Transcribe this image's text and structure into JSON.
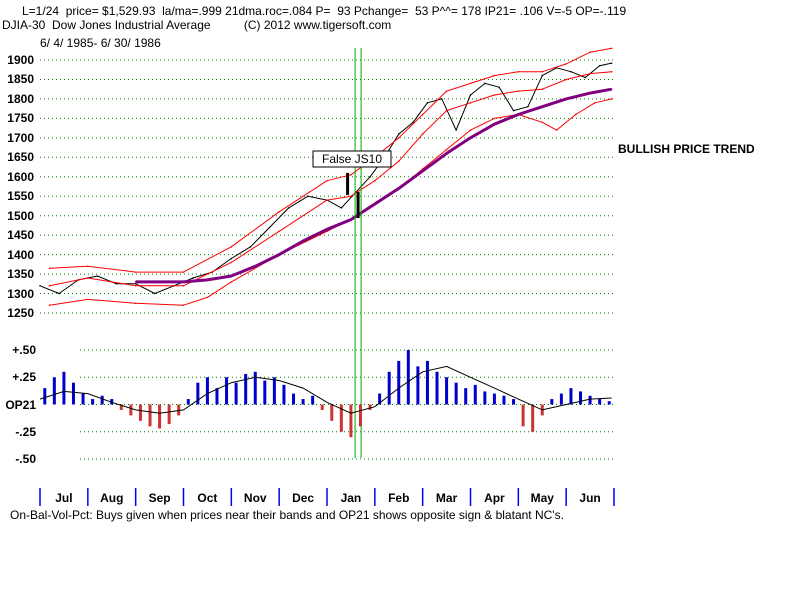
{
  "header": {
    "line1": "L=1/24  price= $1,529.93  la/ma=.999 21dma.roc=.084 P=  93 Pchange=  53 P^^= 178 IP21= .106 V=-5 OP=-.119",
    "line2": "DJIA-30  Dow Jones Industrial Average          (C) 2012 www.tigersoft.com",
    "line3": "6/ 4/ 1985- 6/ 30/ 1986"
  },
  "annotations": {
    "trend": "BULLISH PRICE TREND",
    "signal_box": "False JS10",
    "footer": "On-Bal-Vol-Pct: Buys given when prices near their bands and OP21 shows opposite sign & blatant NC's."
  },
  "colors": {
    "price": "#000000",
    "band": "#ff0000",
    "ma": "#800080",
    "grid": "#008000",
    "signal_line": "#00aa00",
    "pos_bar": "#0000cc",
    "neg_bar": "#cc3333",
    "axis": "#0000ff"
  },
  "chart_data": [
    {
      "type": "line",
      "title": "DJIA-30 Dow Jones Industrial Average",
      "period": "6/4/1985 - 6/30/1986",
      "ylim": [
        1250,
        1900
      ],
      "yticks": [
        1250,
        1300,
        1350,
        1400,
        1450,
        1500,
        1550,
        1600,
        1650,
        1700,
        1750,
        1800,
        1850,
        1900
      ],
      "x_months": [
        "Jul",
        "Aug",
        "Sep",
        "Oct",
        "Nov",
        "Dec",
        "Jan",
        "Feb",
        "Mar",
        "Apr",
        "May",
        "Jun"
      ],
      "month_t": [
        0.5,
        1.5,
        2.5,
        3.5,
        4.5,
        5.5,
        6.5,
        7.5,
        8.5,
        9.5,
        10.5,
        11.5
      ],
      "series": [
        {
          "name": "DJIA close",
          "t": [
            0,
            0.4,
            0.8,
            1.2,
            1.6,
            2.0,
            2.4,
            2.8,
            3.2,
            3.6,
            4.0,
            4.4,
            4.8,
            5.2,
            5.6,
            6.0,
            6.3,
            6.6,
            6.9,
            7.2,
            7.5,
            7.8,
            8.1,
            8.4,
            8.7,
            9.0,
            9.3,
            9.6,
            9.9,
            10.2,
            10.5,
            10.8,
            11.1,
            11.4,
            11.7,
            11.95
          ],
          "values": [
            1320,
            1300,
            1335,
            1345,
            1325,
            1325,
            1300,
            1320,
            1340,
            1355,
            1390,
            1420,
            1470,
            1520,
            1550,
            1540,
            1520,
            1560,
            1600,
            1650,
            1710,
            1740,
            1790,
            1800,
            1720,
            1810,
            1840,
            1830,
            1770,
            1780,
            1860,
            1880,
            1870,
            1855,
            1885,
            1892
          ]
        },
        {
          "name": "Upper band",
          "t": [
            0.2,
            1.0,
            2.0,
            3.0,
            4.0,
            5.0,
            6.0,
            6.5,
            7.0,
            7.5,
            8.0,
            8.5,
            9.0,
            9.5,
            10.0,
            10.5,
            11.0,
            11.5,
            11.95
          ],
          "values": [
            1365,
            1370,
            1355,
            1355,
            1420,
            1510,
            1590,
            1605,
            1650,
            1700,
            1760,
            1820,
            1840,
            1860,
            1870,
            1870,
            1890,
            1920,
            1930
          ]
        },
        {
          "name": "Inner upper band",
          "t": [
            0.2,
            1.0,
            2.0,
            3.0,
            4.0,
            5.0,
            6.0,
            6.5,
            7.0,
            7.5,
            8.0,
            8.5,
            9.0,
            9.5,
            10.0,
            10.5,
            11.0,
            11.5,
            11.95
          ],
          "values": [
            1320,
            1340,
            1320,
            1320,
            1380,
            1460,
            1540,
            1550,
            1590,
            1640,
            1710,
            1770,
            1790,
            1810,
            1820,
            1825,
            1850,
            1865,
            1870
          ]
        },
        {
          "name": "Lower band",
          "t": [
            0.2,
            1.0,
            2.0,
            3.0,
            3.5,
            4.0,
            5.0,
            6.0,
            6.5,
            7.0,
            7.5,
            8.0,
            8.5,
            9.0,
            9.5,
            10.0,
            10.5,
            10.8,
            11.2,
            11.6,
            11.95
          ],
          "values": [
            1270,
            1285,
            1275,
            1270,
            1290,
            1330,
            1400,
            1460,
            1490,
            1530,
            1570,
            1620,
            1670,
            1720,
            1750,
            1760,
            1740,
            1720,
            1760,
            1790,
            1800
          ]
        },
        {
          "name": "21-day MA",
          "t": [
            2.0,
            3.0,
            3.5,
            4.0,
            4.5,
            5.0,
            5.5,
            6.0,
            6.5,
            7.0,
            7.5,
            8.0,
            8.5,
            9.0,
            9.5,
            10.0,
            10.5,
            11.0,
            11.5,
            11.95
          ],
          "values": [
            1330,
            1330,
            1335,
            1345,
            1370,
            1400,
            1435,
            1465,
            1490,
            1530,
            1570,
            1615,
            1660,
            1700,
            1735,
            1760,
            1780,
            1800,
            1815,
            1825
          ]
        }
      ],
      "signals": [
        {
          "label": "False JS10",
          "t": 6.65,
          "value": 1529.93
        }
      ]
    },
    {
      "type": "bar",
      "title": "OP21",
      "ylim": [
        -0.5,
        0.5
      ],
      "yticks": [
        0.5,
        0.25,
        0,
        -0.25,
        -0.5
      ],
      "ytick_labels": [
        "+.50",
        "+.25",
        "OP21",
        "-.25",
        "-.50"
      ],
      "x_months": [
        "Jul",
        "Aug",
        "Sep",
        "Oct",
        "Nov",
        "Dec",
        "Jan",
        "Feb",
        "Mar",
        "Apr",
        "May",
        "Jun"
      ],
      "series": [
        {
          "name": "OP21 bars",
          "t": [
            0.1,
            0.3,
            0.5,
            0.7,
            0.9,
            1.1,
            1.3,
            1.5,
            1.7,
            1.9,
            2.1,
            2.3,
            2.5,
            2.7,
            2.9,
            3.1,
            3.3,
            3.5,
            3.7,
            3.9,
            4.1,
            4.3,
            4.5,
            4.7,
            4.9,
            5.1,
            5.3,
            5.5,
            5.7,
            5.9,
            6.1,
            6.3,
            6.5,
            6.7,
            6.9,
            7.1,
            7.3,
            7.5,
            7.7,
            7.9,
            8.1,
            8.3,
            8.5,
            8.7,
            8.9,
            9.1,
            9.3,
            9.5,
            9.7,
            9.9,
            10.1,
            10.3,
            10.5,
            10.7,
            10.9,
            11.1,
            11.3,
            11.5,
            11.7,
            11.9
          ],
          "values": [
            0.15,
            0.25,
            0.3,
            0.2,
            0.1,
            0.05,
            0.08,
            0.05,
            -0.05,
            -0.1,
            -0.15,
            -0.2,
            -0.22,
            -0.18,
            -0.1,
            0.05,
            0.2,
            0.25,
            0.15,
            0.25,
            0.2,
            0.28,
            0.3,
            0.22,
            0.25,
            0.18,
            0.1,
            0.05,
            0.08,
            -0.05,
            -0.15,
            -0.25,
            -0.3,
            -0.2,
            -0.05,
            0.1,
            0.3,
            0.4,
            0.5,
            0.35,
            0.4,
            0.3,
            0.25,
            0.2,
            0.15,
            0.18,
            0.12,
            0.1,
            0.08,
            0.05,
            -0.2,
            -0.25,
            -0.1,
            0.05,
            0.1,
            0.15,
            0.12,
            0.08,
            0.05,
            0.03
          ]
        },
        {
          "name": "OP21 MA",
          "t": [
            0,
            0.5,
            1.0,
            1.5,
            2.0,
            2.5,
            3.0,
            3.5,
            4.0,
            4.5,
            5.0,
            5.5,
            6.0,
            6.5,
            7.0,
            7.5,
            8.0,
            8.5,
            9.0,
            9.5,
            10.0,
            10.5,
            11.0,
            11.5,
            11.95
          ],
          "values": [
            0.05,
            0.12,
            0.1,
            0.02,
            -0.05,
            -0.08,
            -0.05,
            0.1,
            0.2,
            0.25,
            0.22,
            0.15,
            0.02,
            -0.08,
            -0.02,
            0.15,
            0.3,
            0.35,
            0.25,
            0.15,
            0.05,
            -0.05,
            0.0,
            0.05,
            0.06
          ]
        }
      ]
    }
  ]
}
